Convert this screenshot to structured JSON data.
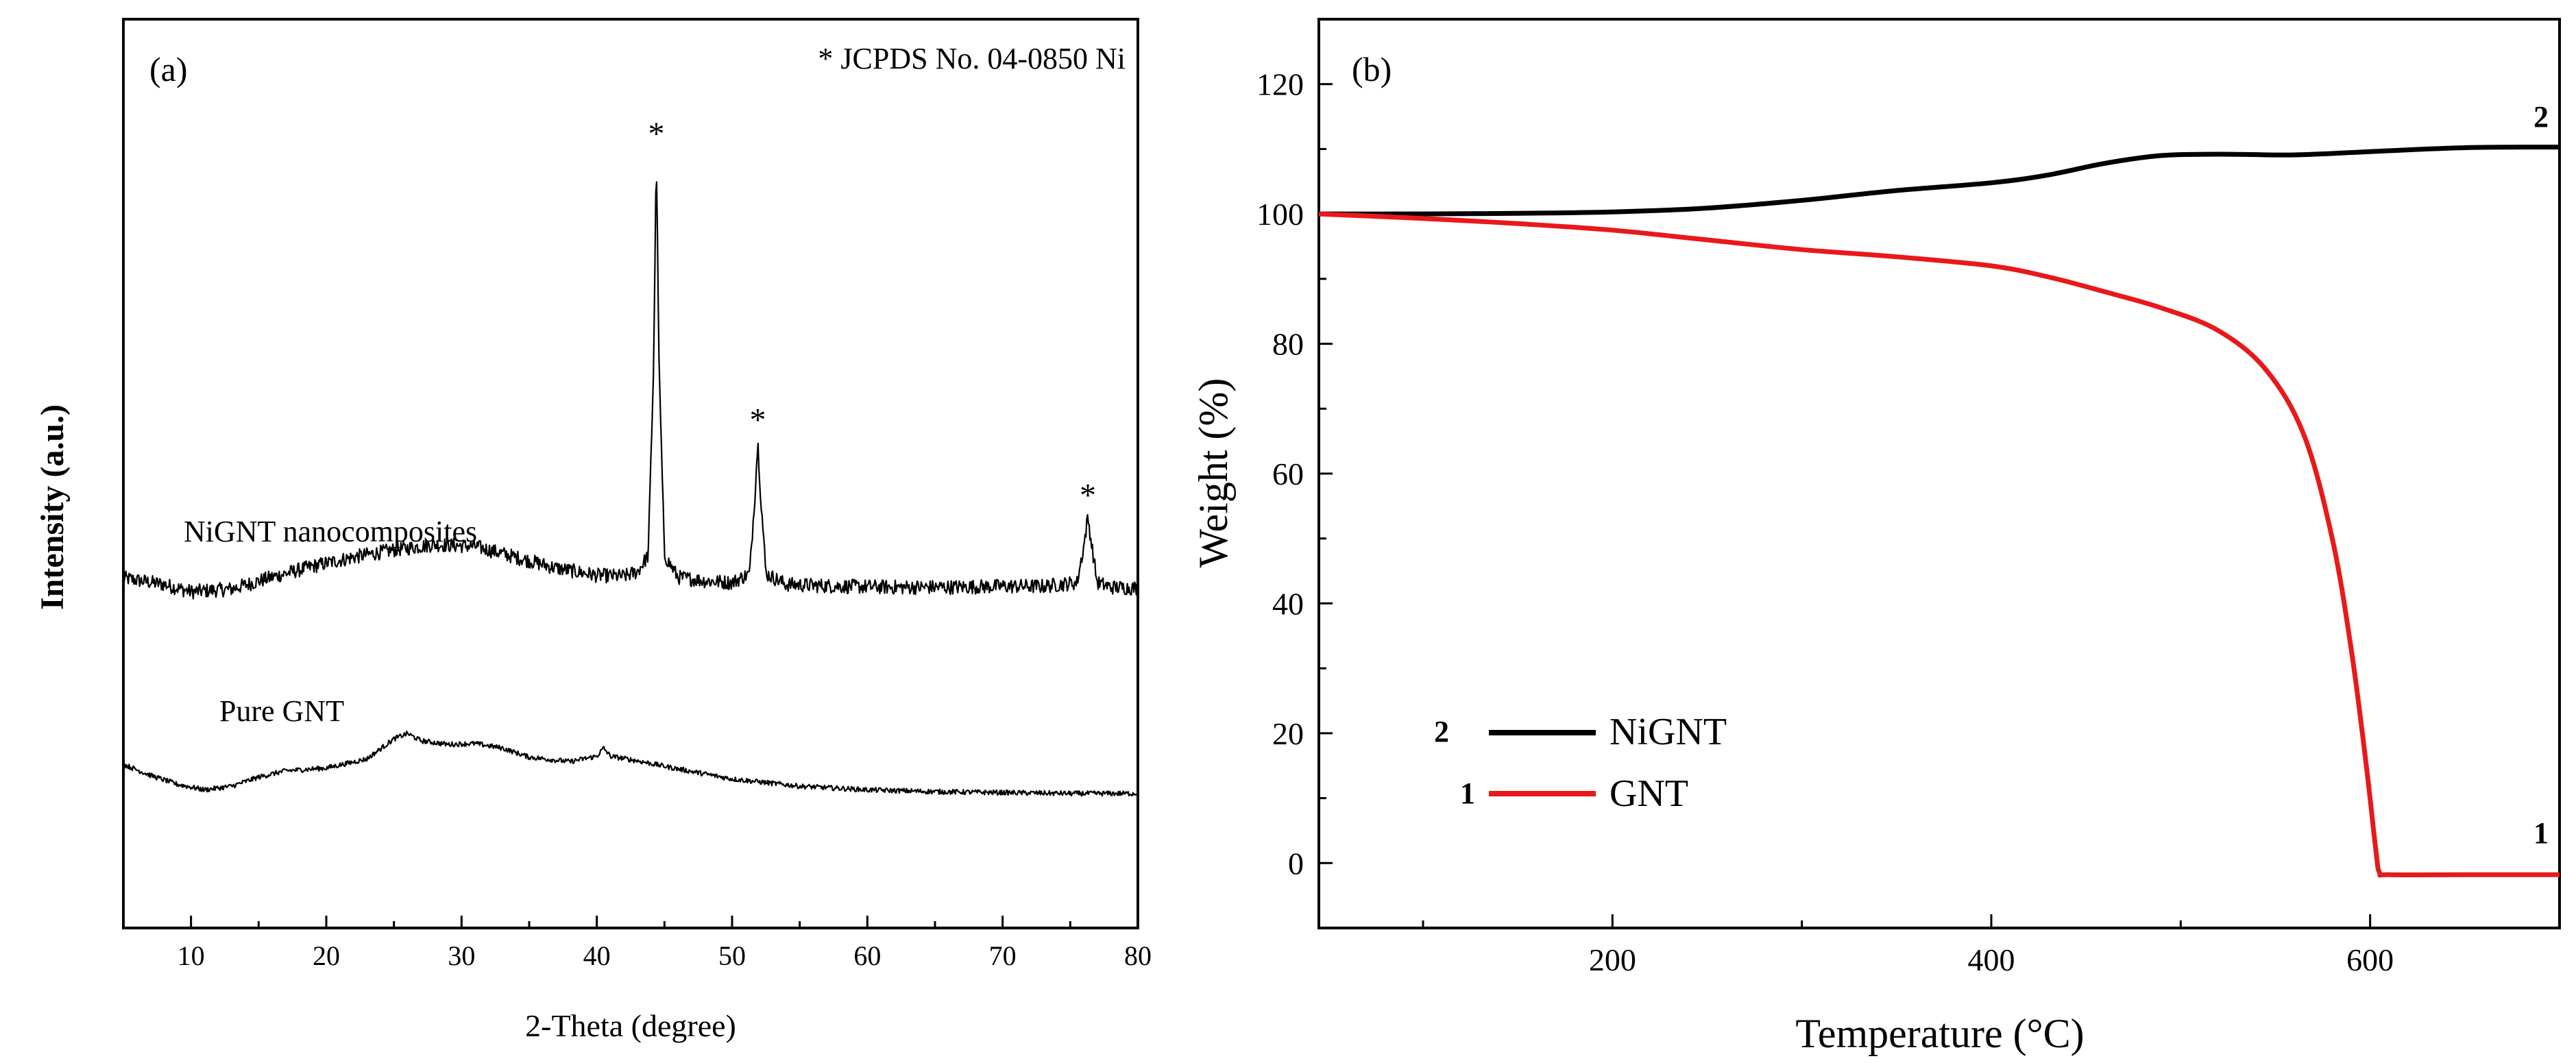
{
  "chart_data": [
    {
      "type": "line",
      "panel_label": "(a)",
      "title": "",
      "xlabel": "2-Theta (degree)",
      "ylabel": "Intensity (a.u.)",
      "xlim": [
        5,
        80
      ],
      "ylim": [
        0,
        100
      ],
      "x_ticks": [
        10,
        20,
        30,
        40,
        50,
        60,
        70,
        80
      ],
      "y_ticks_shown": false,
      "legend_note": "* JCPDS No. 04-0850 Ni",
      "peak_marker": "*",
      "series": [
        {
          "name": "NiGNT nanocomposites",
          "color": "#000000",
          "points": [
            [
              5,
              38.5
            ],
            [
              8,
              37.8
            ],
            [
              10,
              37
            ],
            [
              13,
              37.3
            ],
            [
              16,
              38.6
            ],
            [
              19,
              39.8
            ],
            [
              22,
              40.8
            ],
            [
              25,
              41.6
            ],
            [
              28,
              42.2
            ],
            [
              31,
              42
            ],
            [
              34,
              40.8
            ],
            [
              37,
              39.6
            ],
            [
              40,
              38.8
            ],
            [
              42,
              38.7
            ],
            [
              43,
              39.2
            ],
            [
              43.8,
              41
            ],
            [
              44.2,
              62
            ],
            [
              44.4,
              85
            ],
            [
              44.6,
              62
            ],
            [
              45,
              41
            ],
            [
              46,
              38.6
            ],
            [
              48,
              38.2
            ],
            [
              50,
              38
            ],
            [
              51.3,
              39
            ],
            [
              51.7,
              48
            ],
            [
              51.9,
              53.5
            ],
            [
              52.1,
              48
            ],
            [
              52.5,
              39
            ],
            [
              54,
              37.8
            ],
            [
              58,
              37.6
            ],
            [
              62,
              37.5
            ],
            [
              66,
              37.5
            ],
            [
              70,
              37.6
            ],
            [
              73,
              37.6
            ],
            [
              75.5,
              38
            ],
            [
              76,
              42
            ],
            [
              76.3,
              45.2
            ],
            [
              76.6,
              42
            ],
            [
              77,
              38
            ],
            [
              78,
              37.5
            ],
            [
              80,
              37.4
            ]
          ],
          "peaks": [
            [
              44.4,
              85
            ],
            [
              51.9,
              53.5
            ],
            [
              76.3,
              45.2
            ]
          ]
        },
        {
          "name": "Pure GNT",
          "color": "#000000",
          "points": [
            [
              5,
              18
            ],
            [
              7,
              16.8
            ],
            [
              9,
              15.8
            ],
            [
              11,
              15.2
            ],
            [
              13,
              15.6
            ],
            [
              15,
              16.6
            ],
            [
              17,
              17.3
            ],
            [
              20,
              17.6
            ],
            [
              23,
              18.6
            ],
            [
              25,
              20.8
            ],
            [
              26,
              21.4
            ],
            [
              27,
              20.6
            ],
            [
              29,
              20.2
            ],
            [
              31,
              20.3
            ],
            [
              33,
              19.8
            ],
            [
              35,
              18.8
            ],
            [
              38,
              18.3
            ],
            [
              40,
              18.9
            ],
            [
              40.5,
              19.8
            ],
            [
              41,
              18.9
            ],
            [
              43,
              18.4
            ],
            [
              46,
              17.5
            ],
            [
              50,
              16.4
            ],
            [
              55,
              15.6
            ],
            [
              60,
              15.2
            ],
            [
              65,
              15
            ],
            [
              70,
              14.9
            ],
            [
              75,
              14.8
            ],
            [
              80,
              14.8
            ]
          ]
        }
      ]
    },
    {
      "type": "line",
      "panel_label": "(b)",
      "title": "",
      "xlabel": "Temperature (°C)",
      "ylabel": "Weight (%)",
      "xlim": [
        45,
        700
      ],
      "ylim": [
        -10,
        130
      ],
      "x_ticks": [
        200,
        400,
        600
      ],
      "y_ticks": [
        0,
        20,
        40,
        60,
        80,
        100,
        120
      ],
      "series": [
        {
          "name": "NiGNT",
          "number": "2",
          "color": "#000000",
          "points": [
            [
              45,
              100
            ],
            [
              100,
              100
            ],
            [
              150,
              100.1
            ],
            [
              200,
              100.3
            ],
            [
              250,
              100.9
            ],
            [
              300,
              102.1
            ],
            [
              350,
              103.6
            ],
            [
              400,
              104.8
            ],
            [
              430,
              106
            ],
            [
              460,
              107.8
            ],
            [
              490,
              109
            ],
            [
              520,
              109.2
            ],
            [
              560,
              109.1
            ],
            [
              600,
              109.6
            ],
            [
              650,
              110.2
            ],
            [
              700,
              110.3
            ]
          ]
        },
        {
          "name": "GNT",
          "number": "1",
          "color": "#e8191b",
          "points": [
            [
              45,
              100
            ],
            [
              100,
              99.3
            ],
            [
              150,
              98.5
            ],
            [
              200,
              97.5
            ],
            [
              250,
              96
            ],
            [
              300,
              94.5
            ],
            [
              350,
              93.4
            ],
            [
              400,
              92
            ],
            [
              430,
              90.3
            ],
            [
              460,
              88
            ],
            [
              490,
              85.5
            ],
            [
              520,
              82
            ],
            [
              545,
              76
            ],
            [
              565,
              66
            ],
            [
              580,
              50
            ],
            [
              590,
              33
            ],
            [
              598,
              15
            ],
            [
              603,
              2
            ],
            [
              605,
              -1.5
            ],
            [
              610,
              -1.8
            ],
            [
              650,
              -1.8
            ],
            [
              700,
              -1.8
            ]
          ]
        }
      ]
    }
  ]
}
